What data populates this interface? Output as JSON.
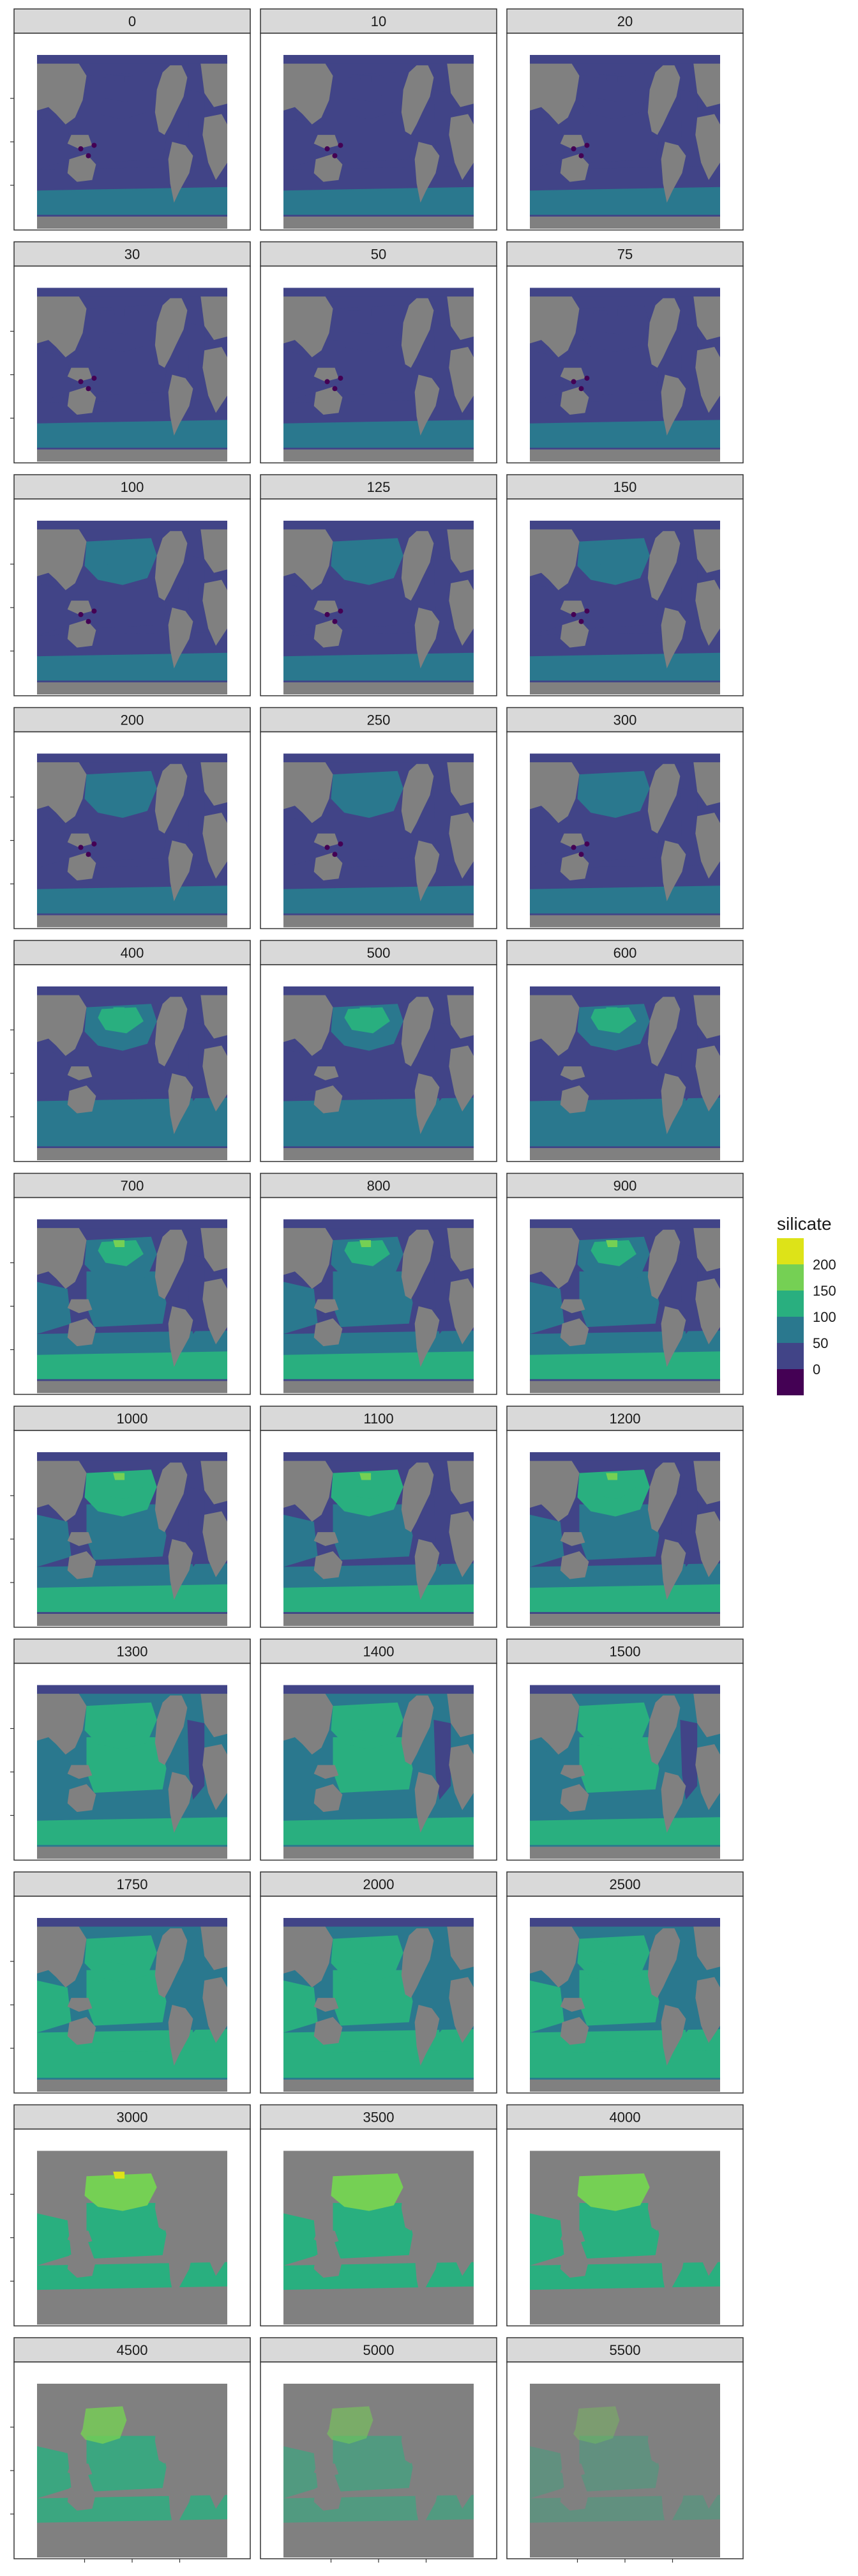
{
  "chart_data": {
    "type": "heatmap",
    "variable": "silicate",
    "facet_variable": "depth",
    "panels": [
      "0",
      "10",
      "20",
      "30",
      "50",
      "75",
      "100",
      "125",
      "150",
      "200",
      "250",
      "300",
      "400",
      "500",
      "600",
      "700",
      "800",
      "900",
      "1000",
      "1100",
      "1200",
      "1300",
      "1400",
      "1500",
      "1750",
      "2000",
      "2500",
      "3000",
      "3500",
      "4000",
      "4500",
      "5000",
      "5500"
    ],
    "panel_levels": [
      0,
      0,
      0,
      0,
      0,
      0,
      1,
      1,
      1,
      1,
      1,
      1,
      2,
      2,
      2,
      3,
      3,
      3,
      4,
      4,
      4,
      5,
      5,
      5,
      6,
      6,
      6,
      7,
      7,
      7,
      8,
      8,
      8
    ],
    "legend": {
      "title": "silicate",
      "labels": [
        "200",
        "150",
        "100",
        "50",
        "0"
      ],
      "colors": [
        "#dde318",
        "#75d054",
        "#29af7f",
        "#2a788e",
        "#414487",
        "#440154"
      ]
    },
    "colors": {
      "land": "#808080",
      "strip": "#d9d9d9",
      "panel_border": "#333333"
    },
    "xlabel": "",
    "ylabel": ""
  }
}
